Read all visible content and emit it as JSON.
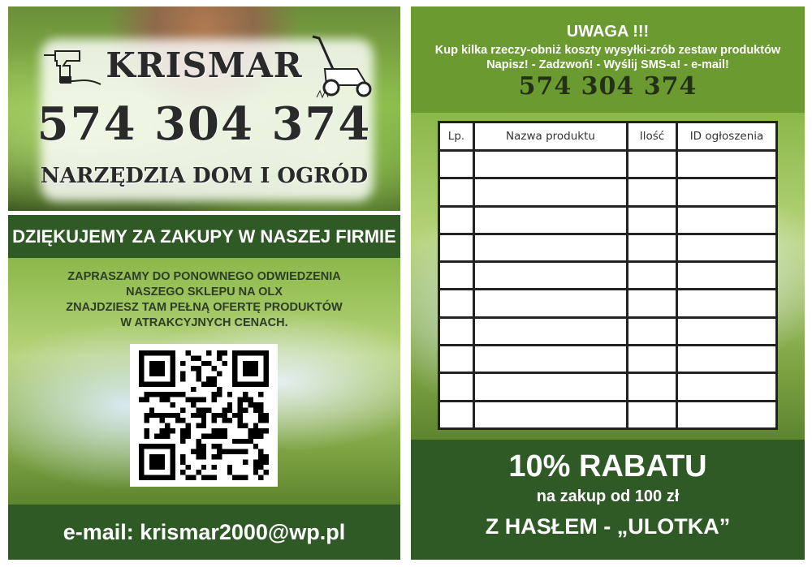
{
  "left": {
    "brand": "KRISMAR",
    "phone": "574 304 374",
    "tagline": "NARZĘDZIA DOM I OGRÓD",
    "thanks": "DZIĘKUJEMY ZA ZAKUPY W NASZEJ FIRMIE",
    "invite": [
      "ZAPRASZAMY DO PONOWNEGO ODWIEDZENIA",
      "NASZEGO SKLEPU NA OLX",
      "ZNAJDZIESZ TAM PEŁNĄ OFERTĘ PRODUKTÓW",
      "W ATRAKCYJNYCH CENACH."
    ],
    "email": "e-mail: krismar2000@wp.pl"
  },
  "right": {
    "warning": "UWAGA !!!",
    "line1": "Kup kilka rzeczy-obniż koszty wysyłki-zrób zestaw produktów",
    "line2": "Napisz! - Zadzwoń! - Wyślij SMS-a! - e-mail!",
    "phone": "574 304 374",
    "table": {
      "headers": [
        "Lp.",
        "Nazwa produktu",
        "Ilość",
        "ID ogłoszenia"
      ],
      "empty_rows": 10
    },
    "discount": "10% RABATU",
    "condition": "na zakup od 100 zł",
    "code": "Z HASŁEM  - „ULOTKA”"
  },
  "colors": {
    "dark_green": "#2f5a26",
    "light_green": "#6a9a30"
  },
  "icons": [
    "drill-icon",
    "lawn-mower-icon",
    "qr-code"
  ]
}
